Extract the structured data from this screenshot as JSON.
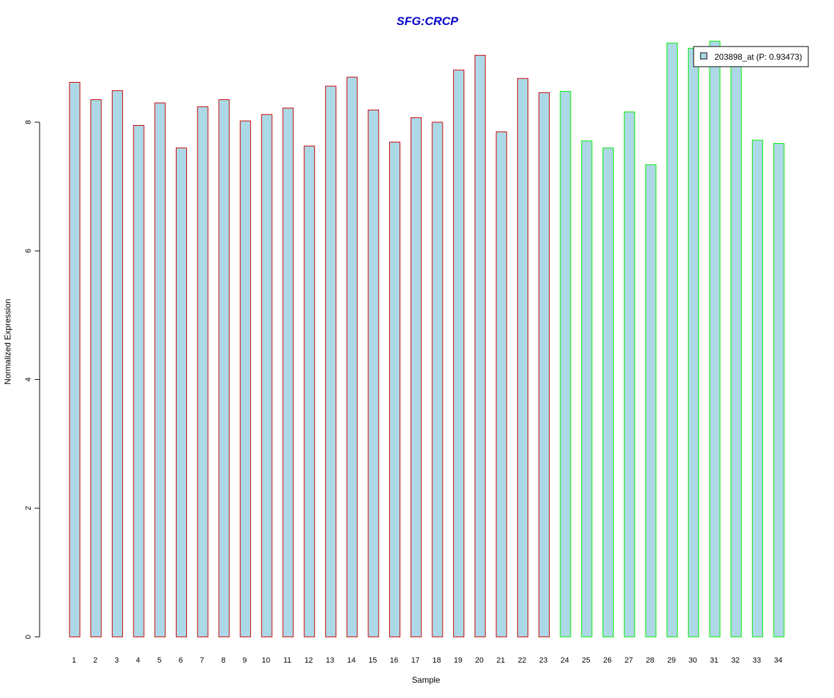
{
  "chart_data": {
    "type": "bar",
    "title": "SFG:CRCP",
    "xlabel": "Sample",
    "ylabel": "Normalized Expression",
    "categories": [
      "1",
      "2",
      "3",
      "4",
      "5",
      "6",
      "7",
      "8",
      "9",
      "10",
      "11",
      "12",
      "13",
      "14",
      "15",
      "16",
      "17",
      "18",
      "19",
      "20",
      "21",
      "22",
      "23",
      "24",
      "25",
      "26",
      "27",
      "28",
      "29",
      "30",
      "31",
      "32",
      "33",
      "34"
    ],
    "series": [
      {
        "name": "203898_at (P: 0.93473)",
        "values": [
          8.62,
          8.35,
          8.49,
          7.95,
          8.3,
          7.6,
          8.24,
          8.35,
          8.02,
          8.12,
          8.22,
          7.63,
          8.56,
          8.7,
          8.19,
          7.69,
          8.07,
          8.0,
          8.81,
          9.04,
          7.85,
          8.68,
          8.46,
          8.48,
          7.71,
          7.6,
          8.16,
          7.34,
          9.23,
          9.15,
          9.26,
          8.95,
          7.72,
          7.67
        ],
        "group_index": [
          0,
          0,
          0,
          0,
          0,
          0,
          0,
          0,
          0,
          0,
          0,
          0,
          0,
          0,
          0,
          0,
          0,
          0,
          0,
          0,
          0,
          0,
          0,
          1,
          1,
          1,
          1,
          1,
          1,
          1,
          1,
          1,
          1,
          1
        ]
      }
    ],
    "group_colors": [
      "#cc0000",
      "#00ee00"
    ],
    "bar_fill": "#add8e6",
    "title_color": "#0000cc",
    "y_ticks": [
      0,
      2,
      4,
      6,
      8
    ],
    "ylim": [
      0,
      9.23
    ],
    "legend": {
      "label": "203898_at (P: 0.93473)",
      "placement": "top-right"
    },
    "grid": false
  }
}
